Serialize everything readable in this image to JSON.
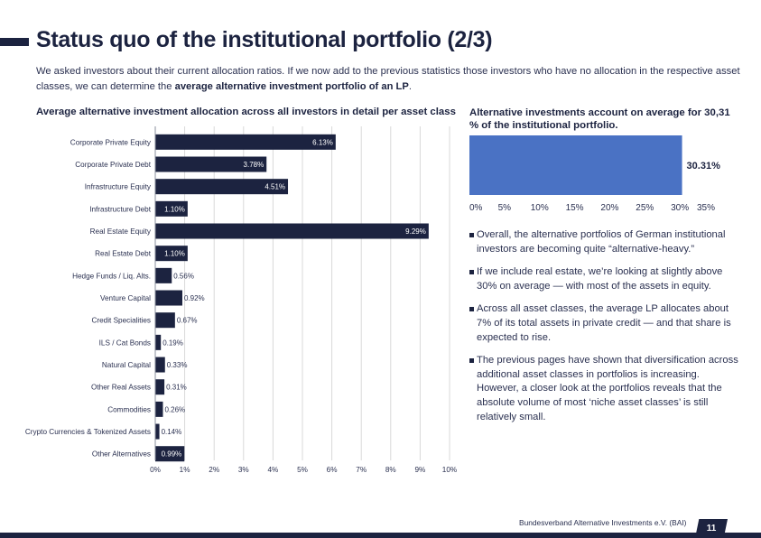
{
  "title": "Status quo of the institutional portfolio (2/3)",
  "intro": {
    "text_before": "We asked investors about their current allocation ratios. If we now add to the previous statistics those investors who have no allocation in the respective asset classes, we can determine the ",
    "text_bold": "average alternative investment portfolio of an LP",
    "text_after": "."
  },
  "left_heading": "Average alternative investment allocation across all investors in detail per asset class",
  "right_heading": "Alternative investments account on average for 30,31 % of the institutional portfolio.",
  "colors": {
    "navy": "#1c2340",
    "summary_bar": "#4a72c4",
    "grid": "#d9d9d9"
  },
  "chart_data": [
    {
      "type": "bar",
      "orientation": "horizontal",
      "title": "Average alternative investment allocation across all investors in detail per asset class",
      "categories": [
        "Corporate Private Equity",
        "Corporate Private Debt",
        "Infrastructure Equity",
        "Infrastructure Debt",
        "Real Estate Equity",
        "Real Estate Debt",
        "Hedge Funds / Liq. Alts.",
        "Venture Capital",
        "Credit Specialities",
        "ILS / Cat Bonds",
        "Natural Capital",
        "Other Real Assets",
        "Commodities",
        "Crypto Currencies & Tokenized Assets",
        "Other Alternatives"
      ],
      "values": [
        6.13,
        3.78,
        4.51,
        1.1,
        9.29,
        1.1,
        0.56,
        0.92,
        0.67,
        0.19,
        0.33,
        0.31,
        0.26,
        0.14,
        0.99
      ],
      "labels": [
        "6.13%",
        "3.78%",
        "4.51%",
        "1.10%",
        "9.29%",
        "1.10%",
        "0.56%",
        "0.92%",
        "0.67%",
        "0.19%",
        "0.33%",
        "0.31%",
        "0.26%",
        "0.14%",
        "0.99%"
      ],
      "xlim": [
        0,
        10
      ],
      "xticks": [
        "0%",
        "1%",
        "2%",
        "3%",
        "4%",
        "5%",
        "6%",
        "7%",
        "8%",
        "9%",
        "10%"
      ],
      "grid": true
    },
    {
      "type": "bar",
      "orientation": "horizontal",
      "title": "Alternative investments account on average for 30,31 % of the institutional portfolio.",
      "categories": [
        "Alternative investments"
      ],
      "values": [
        30.31
      ],
      "labels": [
        "30.31%"
      ],
      "xlim": [
        0,
        35
      ],
      "xticks": [
        "0%",
        "5%",
        "10%",
        "15%",
        "20%",
        "25%",
        "30%",
        "35%"
      ],
      "grid": false
    }
  ],
  "bullets": [
    "Overall, the alternative portfolios of German institutional investors are becoming quite “alternative-heavy.”",
    "If we include real estate, we’re looking at slightly above 30% on average — with most of the assets in equity.",
    "Across all asset classes, the average LP allocates about 7% of its total assets in private credit — and that share is expected to rise.",
    "The previous pages have shown that diversification across additional asset classes in portfolios is increasing. However, a closer look at the portfolios reveals that the absolute volume of most ‘niche asset classes’ is still relatively small."
  ],
  "footer": {
    "organization": "Bundesverband Alternative Investments e.V. (BAI)",
    "page_number": "11"
  }
}
